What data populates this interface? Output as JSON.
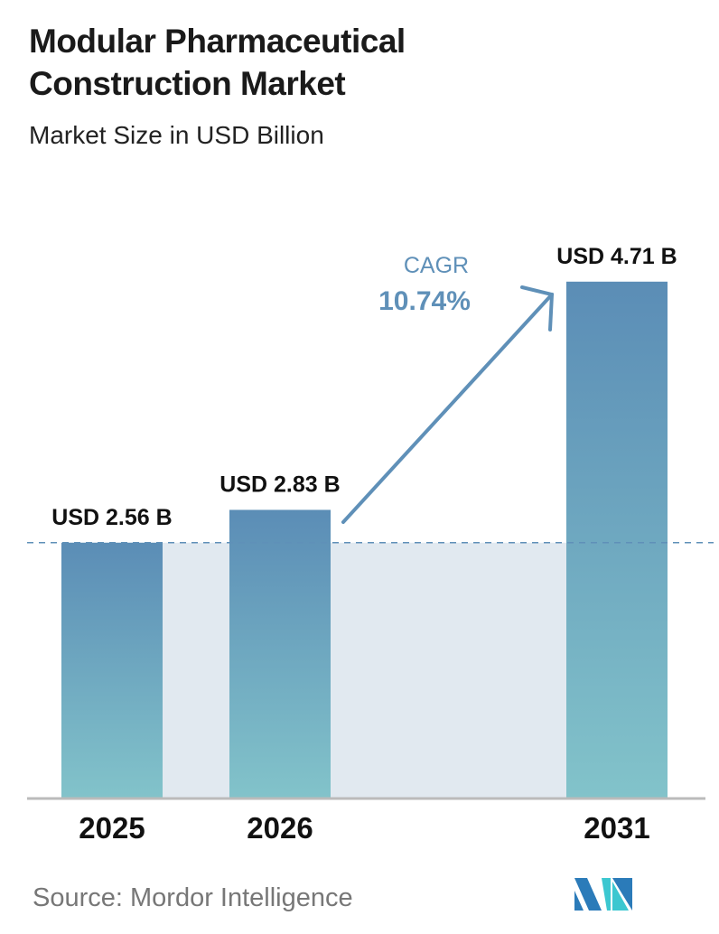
{
  "header": {
    "title": "Modular Pharmaceutical Construction Market",
    "subtitle": "Market Size in USD Billion"
  },
  "chart_data": {
    "type": "bar",
    "categories": [
      "2025",
      "2026",
      "2031"
    ],
    "values": [
      2.56,
      2.83,
      4.71
    ],
    "data_labels": [
      "USD 2.56 B",
      "USD 2.83 B",
      "USD 4.71 B"
    ],
    "title": "Modular Pharmaceutical Construction Market",
    "subtitle": "Market Size in USD Billion",
    "xlabel": "",
    "ylabel": "",
    "grid": false,
    "annotation": {
      "label": "CAGR",
      "value": "10.74%"
    },
    "colors": {
      "bar_top": "#5b8db6",
      "bar_bottom": "#82c3ca",
      "shade": "#e1e9f0",
      "accent": "#5f90b8"
    }
  },
  "footer": {
    "source": "Source:  Mordor Intelligence",
    "logo_text": "Mordor Intelligence"
  }
}
